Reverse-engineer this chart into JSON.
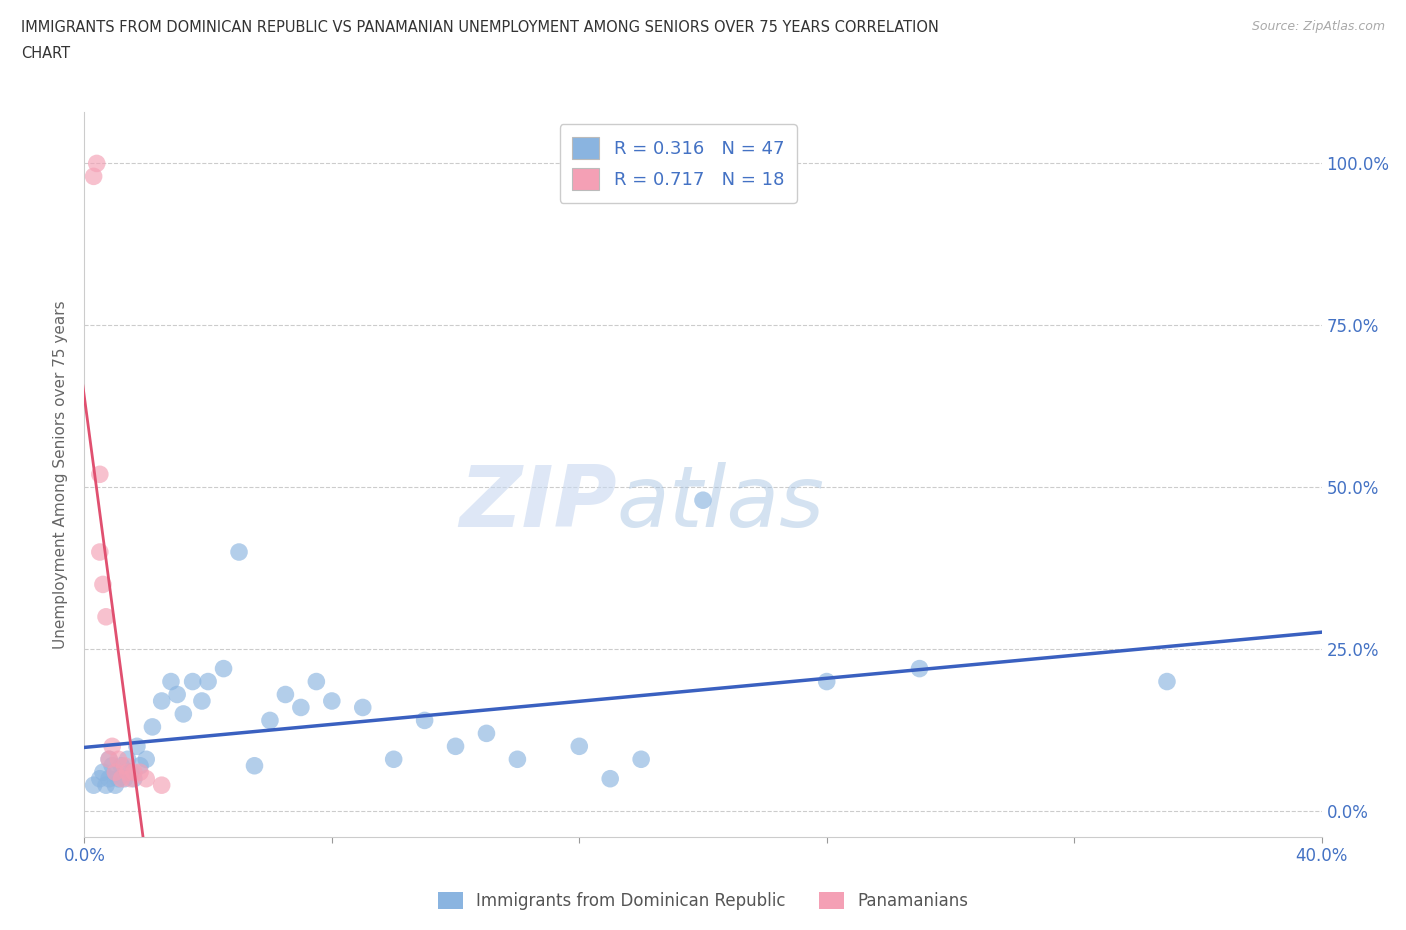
{
  "title_line1": "IMMIGRANTS FROM DOMINICAN REPUBLIC VS PANAMANIAN UNEMPLOYMENT AMONG SENIORS OVER 75 YEARS CORRELATION",
  "title_line2": "CHART",
  "source": "Source: ZipAtlas.com",
  "ylabel": "Unemployment Among Seniors over 75 years",
  "xlim": [
    0.0,
    0.4
  ],
  "ylim": [
    -0.04,
    1.08
  ],
  "xtick_positions": [
    0.0,
    0.08,
    0.16,
    0.24,
    0.32,
    0.4
  ],
  "xtick_label_positions": [
    0.0,
    0.4
  ],
  "xtick_labels": [
    "0.0%",
    "40.0%"
  ],
  "ytick_positions": [
    0.0,
    0.25,
    0.5,
    0.75,
    1.0
  ],
  "ytick_labels": [
    "0.0%",
    "25.0%",
    "50.0%",
    "75.0%",
    "100.0%"
  ],
  "blue_color": "#8ab4e0",
  "pink_color": "#f4a0b5",
  "blue_line_color": "#3a60c0",
  "pink_line_color": "#e05070",
  "r_blue": 0.316,
  "n_blue": 47,
  "r_pink": 0.717,
  "n_pink": 18,
  "legend_label_blue": "Immigrants from Dominican Republic",
  "legend_label_pink": "Panamanians",
  "watermark_zip": "ZIP",
  "watermark_atlas": "atlas",
  "blue_scatter_x": [
    0.003,
    0.005,
    0.006,
    0.007,
    0.008,
    0.008,
    0.009,
    0.01,
    0.01,
    0.011,
    0.012,
    0.013,
    0.014,
    0.015,
    0.016,
    0.017,
    0.018,
    0.02,
    0.022,
    0.025,
    0.028,
    0.03,
    0.032,
    0.035,
    0.038,
    0.04,
    0.045,
    0.05,
    0.055,
    0.06,
    0.065,
    0.07,
    0.075,
    0.08,
    0.09,
    0.1,
    0.11,
    0.12,
    0.13,
    0.14,
    0.16,
    0.17,
    0.18,
    0.2,
    0.24,
    0.27,
    0.35
  ],
  "blue_scatter_y": [
    0.04,
    0.05,
    0.06,
    0.04,
    0.08,
    0.05,
    0.07,
    0.06,
    0.04,
    0.05,
    0.07,
    0.05,
    0.08,
    0.06,
    0.05,
    0.1,
    0.07,
    0.08,
    0.13,
    0.17,
    0.2,
    0.18,
    0.15,
    0.2,
    0.17,
    0.2,
    0.22,
    0.4,
    0.07,
    0.14,
    0.18,
    0.16,
    0.2,
    0.17,
    0.16,
    0.08,
    0.14,
    0.1,
    0.12,
    0.08,
    0.1,
    0.05,
    0.08,
    0.48,
    0.2,
    0.22,
    0.2
  ],
  "pink_scatter_x": [
    0.003,
    0.004,
    0.005,
    0.005,
    0.006,
    0.007,
    0.008,
    0.009,
    0.01,
    0.011,
    0.012,
    0.013,
    0.014,
    0.015,
    0.016,
    0.018,
    0.02,
    0.025
  ],
  "pink_scatter_y": [
    0.98,
    1.0,
    0.52,
    0.4,
    0.35,
    0.3,
    0.08,
    0.1,
    0.06,
    0.08,
    0.05,
    0.07,
    0.06,
    0.05,
    0.06,
    0.06,
    0.05,
    0.04
  ]
}
